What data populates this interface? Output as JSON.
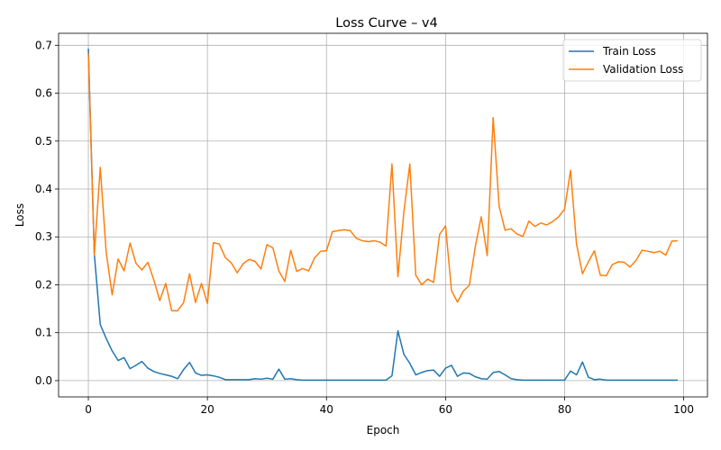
{
  "chart_data": {
    "type": "line",
    "title": "Loss Curve – v4",
    "xlabel": "Epoch",
    "ylabel": "Loss",
    "xlim": [
      -5,
      104
    ],
    "ylim": [
      -0.034,
      0.725
    ],
    "xticks": [
      0,
      20,
      40,
      60,
      80,
      100
    ],
    "yticks": [
      0.0,
      0.1,
      0.2,
      0.3,
      0.4,
      0.5,
      0.6,
      0.7
    ],
    "xtick_labels": [
      "0",
      "20",
      "40",
      "60",
      "80",
      "100"
    ],
    "ytick_labels": [
      "0.0",
      "0.1",
      "0.2",
      "0.3",
      "0.4",
      "0.5",
      "0.6",
      "0.7"
    ],
    "grid": true,
    "legend_position": "upper right",
    "x": [
      0,
      1,
      2,
      3,
      4,
      5,
      6,
      7,
      8,
      9,
      10,
      11,
      12,
      13,
      14,
      15,
      16,
      17,
      18,
      19,
      20,
      21,
      22,
      23,
      24,
      25,
      26,
      27,
      28,
      29,
      30,
      31,
      32,
      33,
      34,
      35,
      36,
      37,
      38,
      39,
      40,
      41,
      42,
      43,
      44,
      45,
      46,
      47,
      48,
      49,
      50,
      51,
      52,
      53,
      54,
      55,
      56,
      57,
      58,
      59,
      60,
      61,
      62,
      63,
      64,
      65,
      66,
      67,
      68,
      69,
      70,
      71,
      72,
      73,
      74,
      75,
      76,
      77,
      78,
      79,
      80,
      81,
      82,
      83,
      84,
      85,
      86,
      87,
      88,
      89,
      90,
      91,
      92,
      93,
      94,
      95,
      96,
      97,
      98,
      99
    ],
    "series": [
      {
        "name": "Train Loss",
        "color": "#1f77b4",
        "values": [
          0.693,
          0.265,
          0.117,
          0.088,
          0.062,
          0.042,
          0.048,
          0.025,
          0.032,
          0.04,
          0.026,
          0.019,
          0.015,
          0.012,
          0.009,
          0.004,
          0.023,
          0.038,
          0.016,
          0.011,
          0.012,
          0.01,
          0.007,
          0.002,
          0.002,
          0.002,
          0.002,
          0.002,
          0.004,
          0.003,
          0.005,
          0.003,
          0.024,
          0.003,
          0.004,
          0.002,
          0.001,
          0.001,
          0.001,
          0.001,
          0.001,
          0.001,
          0.001,
          0.001,
          0.001,
          0.001,
          0.001,
          0.001,
          0.001,
          0.001,
          0.001,
          0.01,
          0.104,
          0.055,
          0.036,
          0.012,
          0.017,
          0.021,
          0.022,
          0.009,
          0.026,
          0.032,
          0.009,
          0.016,
          0.015,
          0.008,
          0.004,
          0.003,
          0.017,
          0.019,
          0.012,
          0.004,
          0.002,
          0.001,
          0.001,
          0.001,
          0.001,
          0.001,
          0.001,
          0.001,
          0.001,
          0.02,
          0.012,
          0.039,
          0.007,
          0.002,
          0.003,
          0.001,
          0.001,
          0.001,
          0.001,
          0.001,
          0.001,
          0.001,
          0.001,
          0.001,
          0.001,
          0.001,
          0.001,
          0.001
        ]
      },
      {
        "name": "Validation Loss",
        "color": "#ff7f0e",
        "values": [
          0.683,
          0.262,
          0.445,
          0.268,
          0.179,
          0.254,
          0.229,
          0.287,
          0.245,
          0.231,
          0.247,
          0.21,
          0.167,
          0.203,
          0.146,
          0.146,
          0.163,
          0.223,
          0.163,
          0.203,
          0.161,
          0.288,
          0.285,
          0.257,
          0.246,
          0.225,
          0.244,
          0.253,
          0.249,
          0.233,
          0.284,
          0.277,
          0.229,
          0.207,
          0.272,
          0.228,
          0.234,
          0.229,
          0.256,
          0.27,
          0.271,
          0.311,
          0.313,
          0.315,
          0.313,
          0.297,
          0.292,
          0.29,
          0.292,
          0.289,
          0.281,
          0.452,
          0.217,
          0.352,
          0.452,
          0.22,
          0.2,
          0.212,
          0.205,
          0.305,
          0.323,
          0.188,
          0.164,
          0.187,
          0.199,
          0.28,
          0.342,
          0.261,
          0.549,
          0.364,
          0.314,
          0.317,
          0.306,
          0.301,
          0.333,
          0.322,
          0.329,
          0.325,
          0.332,
          0.342,
          0.358,
          0.439,
          0.285,
          0.223,
          0.248,
          0.271,
          0.22,
          0.219,
          0.242,
          0.248,
          0.247,
          0.237,
          0.251,
          0.272,
          0.27,
          0.267,
          0.27,
          0.262,
          0.291,
          0.292
        ]
      }
    ]
  }
}
